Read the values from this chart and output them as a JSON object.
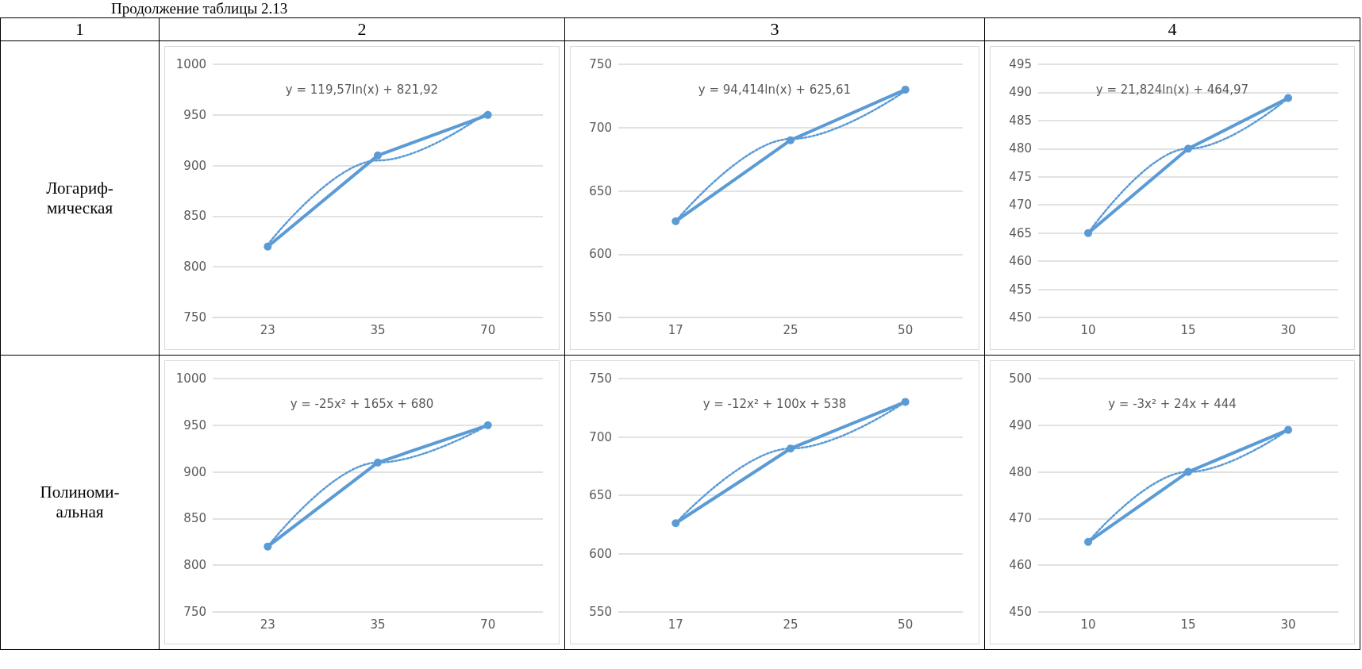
{
  "chart_data": [
    {
      "type": "other",
      "title": "Продолжение таблицы 2.13",
      "annotations": [
        "1",
        "2",
        "3",
        "4",
        "Логариф-\nмическая",
        "Полиноми-\nальная"
      ]
    },
    {
      "type": "line",
      "categories": [
        "23",
        "35",
        "70"
      ],
      "ylim": [
        750,
        1000
      ],
      "yticks": [
        750,
        800,
        850,
        900,
        950,
        1000
      ],
      "grid": "y",
      "marker": "circle",
      "annotations": [
        "y = 119,57ln(x) + 821,92"
      ],
      "series": [
        {
          "color": "#5b9bd5",
          "values": [
            820,
            910,
            950
          ]
        },
        {
          "color": "#5b9bd5",
          "values": [
            822,
            905,
            953
          ],
          "marker": "none",
          "line_style": "dotted"
        }
      ]
    },
    {
      "type": "line",
      "categories": [
        "17",
        "25",
        "50"
      ],
      "ylim": [
        550,
        750
      ],
      "yticks": [
        550,
        600,
        650,
        700,
        750
      ],
      "grid": "y",
      "marker": "circle",
      "annotations": [
        "y = 94,414ln(x) + 625,61"
      ],
      "series": [
        {
          "color": "#5b9bd5",
          "values": [
            626,
            690,
            730
          ]
        },
        {
          "color": "#5b9bd5",
          "values": [
            626,
            691,
            729
          ],
          "marker": "none",
          "line_style": "dotted"
        }
      ]
    },
    {
      "type": "line",
      "categories": [
        "10",
        "15",
        "30"
      ],
      "ylim": [
        450,
        495
      ],
      "yticks": [
        450,
        455,
        460,
        465,
        470,
        475,
        480,
        485,
        490,
        495
      ],
      "grid": "y",
      "marker": "circle",
      "annotations": [
        "y = 21,824ln(x) + 464,97"
      ],
      "series": [
        {
          "color": "#5b9bd5",
          "values": [
            465,
            480,
            489
          ]
        },
        {
          "color": "#5b9bd5",
          "values": [
            465,
            480,
            489
          ],
          "marker": "none",
          "line_style": "dotted"
        }
      ]
    },
    {
      "type": "line",
      "categories": [
        "23",
        "35",
        "70"
      ],
      "ylim": [
        750,
        1000
      ],
      "yticks": [
        750,
        800,
        850,
        900,
        950,
        1000
      ],
      "grid": "y",
      "marker": "circle",
      "annotations": [
        "y = -25x² + 165x + 680"
      ],
      "series": [
        {
          "color": "#5b9bd5",
          "values": [
            820,
            910,
            950
          ]
        },
        {
          "color": "#5b9bd5",
          "values": [
            820,
            910,
            950
          ],
          "marker": "none",
          "line_style": "dotted"
        }
      ]
    },
    {
      "type": "line",
      "categories": [
        "17",
        "25",
        "50"
      ],
      "ylim": [
        550,
        750
      ],
      "yticks": [
        550,
        600,
        650,
        700,
        750
      ],
      "grid": "y",
      "marker": "circle",
      "annotations": [
        "y = -12x² + 100x + 538"
      ],
      "series": [
        {
          "color": "#5b9bd5",
          "values": [
            626,
            690,
            730
          ]
        },
        {
          "color": "#5b9bd5",
          "values": [
            626,
            690,
            730
          ],
          "marker": "none",
          "line_style": "dotted"
        }
      ]
    },
    {
      "type": "line",
      "categories": [
        "10",
        "15",
        "30"
      ],
      "ylim": [
        450,
        500
      ],
      "yticks": [
        450,
        460,
        470,
        480,
        490,
        500
      ],
      "grid": "y",
      "marker": "circle",
      "annotations": [
        "y = -3x² + 24x + 444"
      ],
      "series": [
        {
          "color": "#5b9bd5",
          "values": [
            465,
            480,
            489
          ]
        },
        {
          "color": "#5b9bd5",
          "values": [
            465,
            480,
            489
          ],
          "marker": "none",
          "line_style": "dotted"
        }
      ]
    }
  ]
}
